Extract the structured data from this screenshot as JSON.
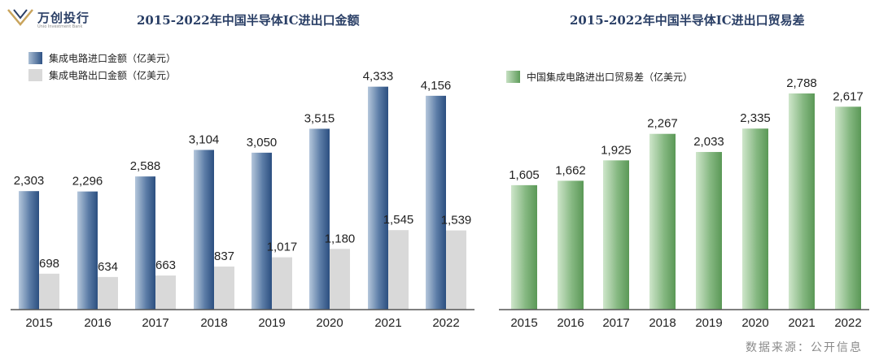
{
  "logo": {
    "name": "万创投行",
    "subtitle": "Unio Investment Bank"
  },
  "source": "数据来源：公开信息",
  "colors": {
    "import": "#3b5f8e",
    "export": "#d9d9d9",
    "balance": "#6aa366"
  },
  "chart_data": [
    {
      "type": "bar",
      "title": "2015-2022年中国半导体IC进出口金额",
      "categories": [
        "2015",
        "2016",
        "2017",
        "2018",
        "2019",
        "2020",
        "2021",
        "2022"
      ],
      "series": [
        {
          "name": "集成电路进口金额（亿美元）",
          "values": [
            2303,
            2296,
            2588,
            3104,
            3050,
            3515,
            4333,
            4156
          ],
          "labels": [
            "2,303",
            "2,296",
            "2,588",
            "3,104",
            "3,050",
            "3,515",
            "4,333",
            "4,156"
          ]
        },
        {
          "name": "集成电路出口金额（亿美元）",
          "values": [
            698,
            634,
            663,
            837,
            1017,
            1180,
            1545,
            1539
          ],
          "labels": [
            "698",
            "634",
            "663",
            "837",
            "1,017",
            "1,180",
            "1,545",
            "1,539"
          ]
        }
      ],
      "ylim": [
        0,
        4800
      ],
      "legend_position": "top-left",
      "grid": false
    },
    {
      "type": "bar",
      "title": "2015-2022年中国半导体IC进出口贸易差",
      "categories": [
        "2015",
        "2016",
        "2017",
        "2018",
        "2019",
        "2020",
        "2021",
        "2022"
      ],
      "series": [
        {
          "name": "中国集成电路进出口贸易差（亿美元）",
          "values": [
            1605,
            1662,
            1925,
            2267,
            2033,
            2335,
            2788,
            2617
          ],
          "labels": [
            "1,605",
            "1,662",
            "1,925",
            "2,267",
            "2,033",
            "2,335",
            "2,788",
            "2,617"
          ]
        }
      ],
      "ylim": [
        0,
        4300
      ],
      "legend_position": "top-left",
      "grid": false
    }
  ]
}
